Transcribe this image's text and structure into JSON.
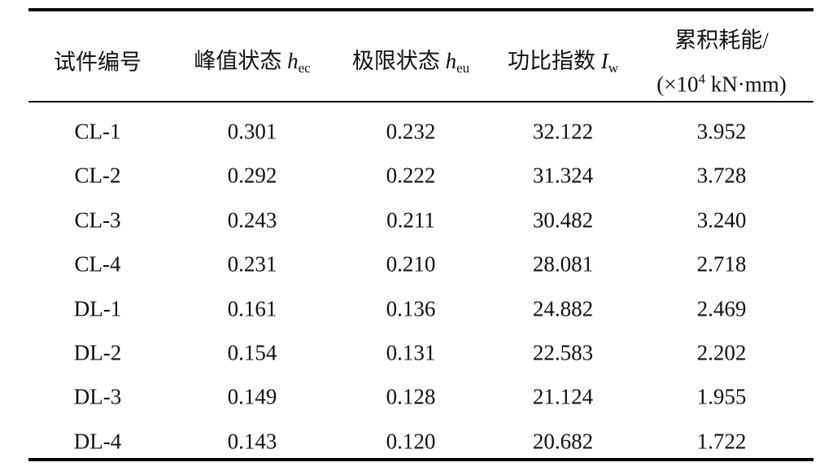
{
  "table": {
    "header": [
      {
        "text": "试件编号"
      },
      {
        "text": "峰值状态 ",
        "var": "h",
        "sub": "ec"
      },
      {
        "text": "极限状态 ",
        "var": "h",
        "sub": "eu"
      },
      {
        "text": "功比指数 ",
        "var": "I",
        "sub": "w"
      },
      {
        "line1": "累积耗能/",
        "pre": "(×10",
        "sup": "4",
        "post": " kN·mm)"
      }
    ],
    "rows": [
      [
        "CL-1",
        "0.301",
        "0.232",
        "32.122",
        "3.952"
      ],
      [
        "CL-2",
        "0.292",
        "0.222",
        "31.324",
        "3.728"
      ],
      [
        "CL-3",
        "0.243",
        "0.211",
        "30.482",
        "3.240"
      ],
      [
        "CL-4",
        "0.231",
        "0.210",
        "28.081",
        "2.718"
      ],
      [
        "DL-1",
        "0.161",
        "0.136",
        "24.882",
        "2.469"
      ],
      [
        "DL-2",
        "0.154",
        "0.131",
        "22.583",
        "2.202"
      ],
      [
        "DL-3",
        "0.149",
        "0.128",
        "21.124",
        "1.955"
      ],
      [
        "DL-4",
        "0.143",
        "0.120",
        "20.682",
        "1.722"
      ]
    ]
  }
}
